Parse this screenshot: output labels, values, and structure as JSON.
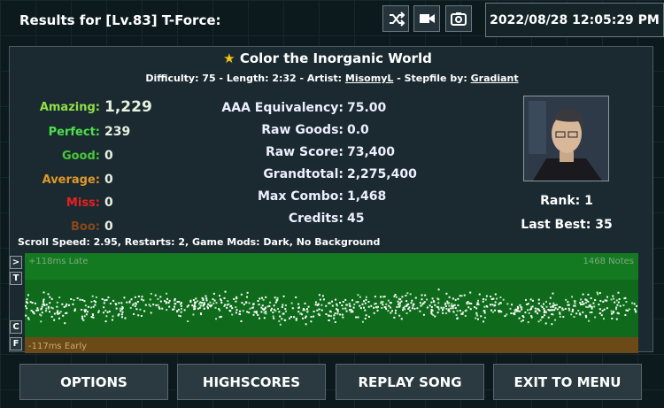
{
  "header": {
    "title": "Results for [Lv.83] T-Force:",
    "datetime": "2022/08/28 12:05:29 PM"
  },
  "song": {
    "title": "Color the Inorganic World",
    "info_prefix": "Difficulty: 75 - Length: 2:32 - Artist: ",
    "artist": "MisomyL",
    "info_middle": " - Stepfile by: ",
    "stepfile": "Gradiant"
  },
  "judgements": [
    {
      "label": "Amazing:",
      "value": "1,229"
    },
    {
      "label": "Perfect:",
      "value": "239"
    },
    {
      "label": "Good:",
      "value": "0"
    },
    {
      "label": "Average:",
      "value": "0"
    },
    {
      "label": "Miss:",
      "value": "0"
    },
    {
      "label": "Boo:",
      "value": "0"
    }
  ],
  "stats": [
    {
      "label": "AAA Equivalency:",
      "value": "75.00"
    },
    {
      "label": "Raw Goods:",
      "value": "0.0"
    },
    {
      "label": "Raw Score:",
      "value": "73,400"
    },
    {
      "label": "Grandtotal:",
      "value": "2,275,400"
    },
    {
      "label": "Max Combo:",
      "value": "1,468"
    },
    {
      "label": "Credits:",
      "value": "45"
    }
  ],
  "rank": {
    "label": "Rank:",
    "value": "1"
  },
  "last_best": {
    "label": "Last Best:",
    "value": "35"
  },
  "settings_line": "Scroll Speed: 2.95, Restarts: 2, Game Mods: Dark, No Background",
  "graph": {
    "late_label": "+118ms Late",
    "early_label": "-117ms Early",
    "notes_label": "1468 Notes",
    "side_buttons": [
      ">",
      "T",
      "C",
      "F"
    ]
  },
  "buttons": [
    "OPTIONS",
    "HIGHSCORES",
    "REPLAY SONG",
    "EXIT TO MENU"
  ]
}
